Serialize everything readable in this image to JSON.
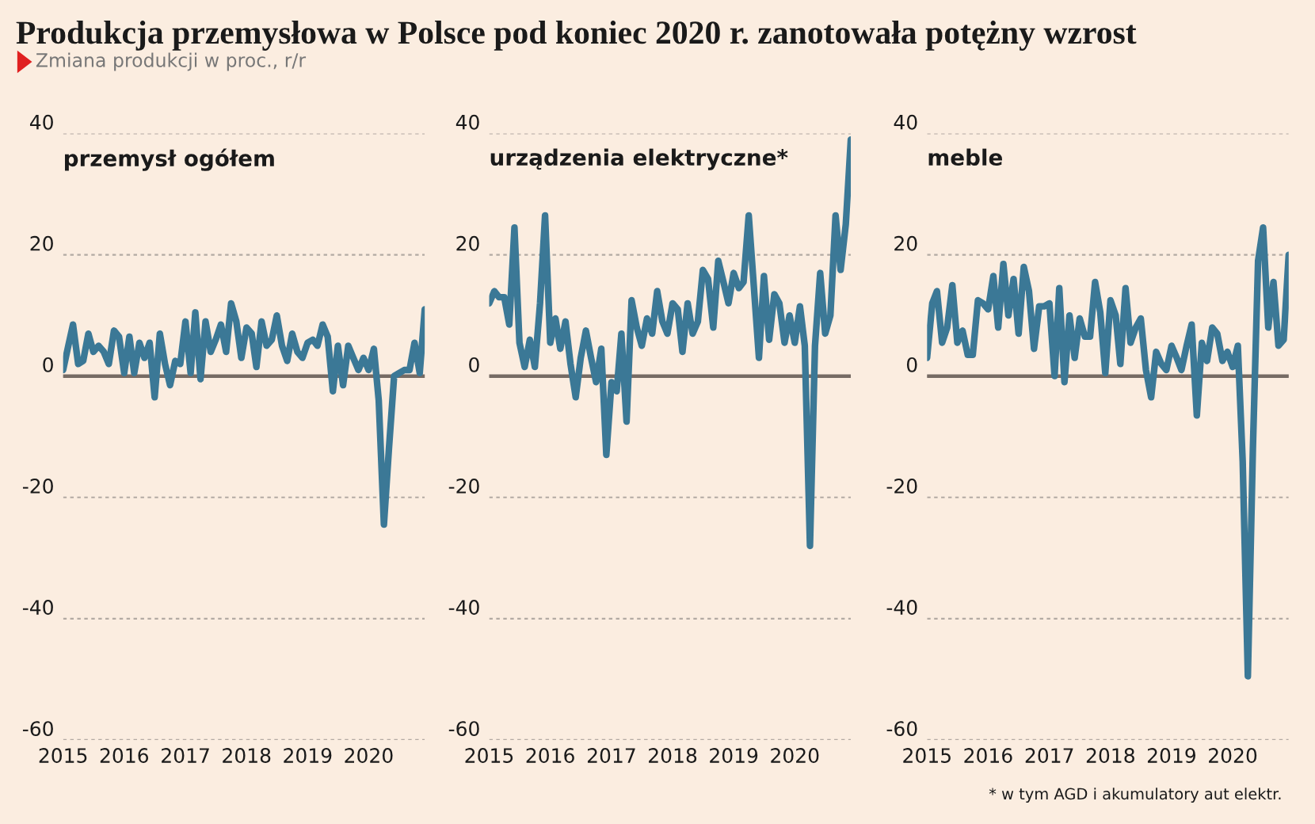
{
  "chart_data": [
    {
      "type": "line",
      "title": "Produkcja przemysłowa w Polsce pod koniec 2020 r. zanotowała potężny wzrost",
      "subtitle": "Zmiana produkcji w proc., r/r",
      "x": [
        "2015-01",
        "2015-02",
        "2015-03",
        "2015-04",
        "2015-05",
        "2015-06",
        "2015-07",
        "2015-08",
        "2015-09",
        "2015-10",
        "2015-11",
        "2015-12",
        "2016-01",
        "2016-02",
        "2016-03",
        "2016-04",
        "2016-05",
        "2016-06",
        "2016-07",
        "2016-08",
        "2016-09",
        "2016-10",
        "2016-11",
        "2016-12",
        "2017-01",
        "2017-02",
        "2017-03",
        "2017-04",
        "2017-05",
        "2017-06",
        "2017-07",
        "2017-08",
        "2017-09",
        "2017-10",
        "2017-11",
        "2017-12",
        "2018-01",
        "2018-02",
        "2018-03",
        "2018-04",
        "2018-05",
        "2018-06",
        "2018-07",
        "2018-08",
        "2018-09",
        "2018-10",
        "2018-11",
        "2018-12",
        "2019-01",
        "2019-02",
        "2019-03",
        "2019-04",
        "2019-05",
        "2019-06",
        "2019-07",
        "2019-08",
        "2019-09",
        "2019-10",
        "2019-11",
        "2019-12",
        "2020-01",
        "2020-02",
        "2020-03",
        "2020-04",
        "2020-05",
        "2020-06",
        "2020-07",
        "2020-08",
        "2020-09",
        "2020-10",
        "2020-11",
        "2020-12"
      ],
      "series": [
        {
          "name": "przemysł ogółem",
          "color": "#3b7896",
          "values": [
            1,
            5,
            8.5,
            2,
            2.5,
            7,
            4,
            5,
            4,
            2,
            7.5,
            6.5,
            0.5,
            6.5,
            0.5,
            5.5,
            3,
            5.5,
            -3.5,
            7,
            2,
            -1.5,
            2.5,
            2,
            9,
            0.5,
            10.5,
            -0.5,
            9,
            4,
            6,
            8.5,
            4,
            12,
            9,
            3,
            8,
            7,
            1.5,
            9,
            5,
            6,
            10,
            5,
            2.5,
            7,
            4,
            3,
            5.5,
            6,
            5,
            8.5,
            6.5,
            -2.5,
            5,
            -1.5,
            5,
            3,
            1,
            3,
            1,
            4.5,
            -4,
            -24.5,
            -12,
            0,
            0.5,
            1,
            1,
            5.5,
            0.5,
            11
          ]
        }
      ],
      "xlim": [
        "2015-01",
        "2020-12"
      ],
      "xticks": [
        {
          "value": "2015-01",
          "label": "2015"
        },
        {
          "value": "2016-01",
          "label": "2016"
        },
        {
          "value": "2017-01",
          "label": "2017"
        },
        {
          "value": "2018-01",
          "label": "2018"
        },
        {
          "value": "2019-01",
          "label": "2019"
        },
        {
          "value": "2020-01",
          "label": "2020"
        }
      ],
      "ylim": [
        -60,
        40
      ],
      "yticks": [
        -60,
        -40,
        -20,
        0,
        20,
        40
      ],
      "grid": "y",
      "legend": false,
      "line_style": "solid",
      "ref_lines": [
        {
          "axis": "y",
          "value": 0,
          "color": "#766b64"
        }
      ]
    },
    {
      "type": "line",
      "x": [
        "2015-01",
        "2015-02",
        "2015-03",
        "2015-04",
        "2015-05",
        "2015-06",
        "2015-07",
        "2015-08",
        "2015-09",
        "2015-10",
        "2015-11",
        "2015-12",
        "2016-01",
        "2016-02",
        "2016-03",
        "2016-04",
        "2016-05",
        "2016-06",
        "2016-07",
        "2016-08",
        "2016-09",
        "2016-10",
        "2016-11",
        "2016-12",
        "2017-01",
        "2017-02",
        "2017-03",
        "2017-04",
        "2017-05",
        "2017-06",
        "2017-07",
        "2017-08",
        "2017-09",
        "2017-10",
        "2017-11",
        "2017-12",
        "2018-01",
        "2018-02",
        "2018-03",
        "2018-04",
        "2018-05",
        "2018-06",
        "2018-07",
        "2018-08",
        "2018-09",
        "2018-10",
        "2018-11",
        "2018-12",
        "2019-01",
        "2019-02",
        "2019-03",
        "2019-04",
        "2019-05",
        "2019-06",
        "2019-07",
        "2019-08",
        "2019-09",
        "2019-10",
        "2019-11",
        "2019-12",
        "2020-01",
        "2020-02",
        "2020-03",
        "2020-04",
        "2020-05",
        "2020-06",
        "2020-07",
        "2020-08",
        "2020-09",
        "2020-10",
        "2020-11",
        "2020-12"
      ],
      "series": [
        {
          "name": "urządzenia elektryczne*",
          "color": "#3b7896",
          "values": [
            12,
            14,
            13,
            13,
            8.5,
            24.5,
            5.5,
            1.5,
            6,
            1.5,
            12,
            26.5,
            5.5,
            9.5,
            4.5,
            9,
            2,
            -3.5,
            3,
            7.5,
            3,
            -1,
            4.5,
            -13,
            -1,
            -2.5,
            7,
            -7.5,
            12.5,
            8,
            5,
            9.5,
            7,
            14,
            9,
            7,
            12,
            11,
            4,
            12,
            7,
            9,
            17.5,
            16,
            8,
            19,
            15.5,
            12,
            17,
            14.5,
            15.5,
            26.5,
            15,
            3,
            16.5,
            6,
            13.5,
            12,
            5.5,
            10,
            5.5,
            11.5,
            5,
            -28,
            5,
            17,
            7,
            10,
            26.5,
            17.5,
            25,
            39
          ]
        }
      ],
      "xlim": [
        "2015-01",
        "2020-12"
      ],
      "xticks": [
        {
          "value": "2015-01",
          "label": "2015"
        },
        {
          "value": "2016-01",
          "label": "2016"
        },
        {
          "value": "2017-01",
          "label": "2017"
        },
        {
          "value": "2018-01",
          "label": "2018"
        },
        {
          "value": "2019-01",
          "label": "2019"
        },
        {
          "value": "2020-01",
          "label": "2020"
        }
      ],
      "ylim": [
        -60,
        40
      ],
      "yticks": [
        -60,
        -40,
        -20,
        0,
        20,
        40
      ],
      "grid": "y",
      "legend": false,
      "line_style": "solid",
      "ref_lines": [
        {
          "axis": "y",
          "value": 0,
          "color": "#766b64"
        }
      ]
    },
    {
      "type": "line",
      "x": [
        "2015-01",
        "2015-02",
        "2015-03",
        "2015-04",
        "2015-05",
        "2015-06",
        "2015-07",
        "2015-08",
        "2015-09",
        "2015-10",
        "2015-11",
        "2015-12",
        "2016-01",
        "2016-02",
        "2016-03",
        "2016-04",
        "2016-05",
        "2016-06",
        "2016-07",
        "2016-08",
        "2016-09",
        "2016-10",
        "2016-11",
        "2016-12",
        "2017-01",
        "2017-02",
        "2017-03",
        "2017-04",
        "2017-05",
        "2017-06",
        "2017-07",
        "2017-08",
        "2017-09",
        "2017-10",
        "2017-11",
        "2017-12",
        "2018-01",
        "2018-02",
        "2018-03",
        "2018-04",
        "2018-05",
        "2018-06",
        "2018-07",
        "2018-08",
        "2018-09",
        "2018-10",
        "2018-11",
        "2018-12",
        "2019-01",
        "2019-02",
        "2019-03",
        "2019-04",
        "2019-05",
        "2019-06",
        "2019-07",
        "2019-08",
        "2019-09",
        "2019-10",
        "2019-11",
        "2019-12",
        "2020-01",
        "2020-02",
        "2020-03",
        "2020-04",
        "2020-05",
        "2020-06",
        "2020-07",
        "2020-08",
        "2020-09",
        "2020-10",
        "2020-11",
        "2020-12"
      ],
      "series": [
        {
          "name": "meble",
          "color": "#3b7896",
          "values": [
            3,
            12,
            14,
            5.5,
            8,
            15,
            5.5,
            7.5,
            3.5,
            3.5,
            12.5,
            12,
            11,
            16.5,
            8,
            18.5,
            10,
            16,
            7,
            18,
            14,
            4.5,
            11.5,
            11.5,
            12,
            0,
            14.5,
            -1,
            10,
            3,
            9.5,
            6.5,
            6.5,
            15.5,
            10.5,
            0.5,
            12.5,
            10,
            2,
            14.5,
            5.5,
            8,
            9.5,
            1,
            -3.5,
            4,
            2,
            1,
            5,
            3,
            1,
            5,
            8.5,
            -6.5,
            5.5,
            2.5,
            8,
            7,
            2.5,
            4,
            1.5,
            5,
            -14,
            -49.5,
            -12,
            19,
            24.5,
            8,
            15.5,
            5,
            6,
            20
          ]
        }
      ],
      "xlim": [
        "2015-01",
        "2020-12"
      ],
      "xticks": [
        {
          "value": "2015-01",
          "label": "2015"
        },
        {
          "value": "2016-01",
          "label": "2016"
        },
        {
          "value": "2017-01",
          "label": "2017"
        },
        {
          "value": "2018-01",
          "label": "2018"
        },
        {
          "value": "2019-01",
          "label": "2019"
        },
        {
          "value": "2020-01",
          "label": "2020"
        }
      ],
      "ylim": [
        -60,
        40
      ],
      "yticks": [
        -60,
        -40,
        -20,
        0,
        20,
        40
      ],
      "grid": "y",
      "legend": false,
      "line_style": "solid",
      "ref_lines": [
        {
          "axis": "y",
          "value": 0,
          "color": "#766b64"
        }
      ],
      "annotations": [
        "* w tym AGD i akumulatory aut elektr."
      ]
    }
  ]
}
